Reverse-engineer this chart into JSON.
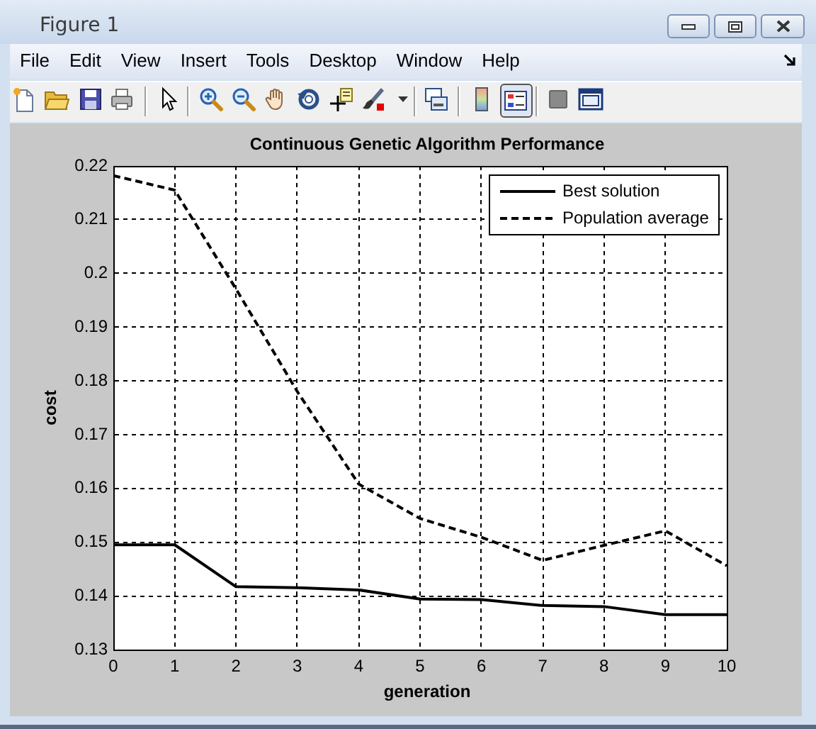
{
  "chart_data": {
    "type": "line",
    "title": "Continuous Genetic Algorithm Performance",
    "xlabel": "generation",
    "ylabel": "cost",
    "x": [
      0,
      1,
      2,
      3,
      4,
      5,
      6,
      7,
      8,
      9,
      10
    ],
    "series": [
      {
        "name": "Best solution",
        "color": "#000000",
        "line_style": "solid",
        "values": [
          0.1495,
          0.1495,
          0.1417,
          0.1415,
          0.1411,
          0.1394,
          0.1393,
          0.1382,
          0.138,
          0.1365,
          0.1365
        ]
      },
      {
        "name": "Population average",
        "color": "#000000",
        "line_style": "dashed",
        "values": [
          0.2182,
          0.2155,
          0.1971,
          0.178,
          0.1608,
          0.1544,
          0.1509,
          0.1466,
          0.1494,
          0.1521,
          0.1456
        ]
      }
    ],
    "xlim": [
      0,
      10
    ],
    "xticks": [
      0,
      1,
      2,
      3,
      4,
      5,
      6,
      7,
      8,
      9,
      10
    ],
    "ylim": [
      0.13,
      0.22
    ],
    "yticks": [
      0.13,
      0.14,
      0.15,
      0.16,
      0.17,
      0.18,
      0.19,
      0.2,
      0.21,
      0.22
    ],
    "grid": true,
    "legend": "top right",
    "annotations": [
      "Figure 1",
      "File",
      "Edit",
      "View",
      "Insert",
      "Tools",
      "Desktop",
      "Window",
      "Help"
    ]
  }
}
